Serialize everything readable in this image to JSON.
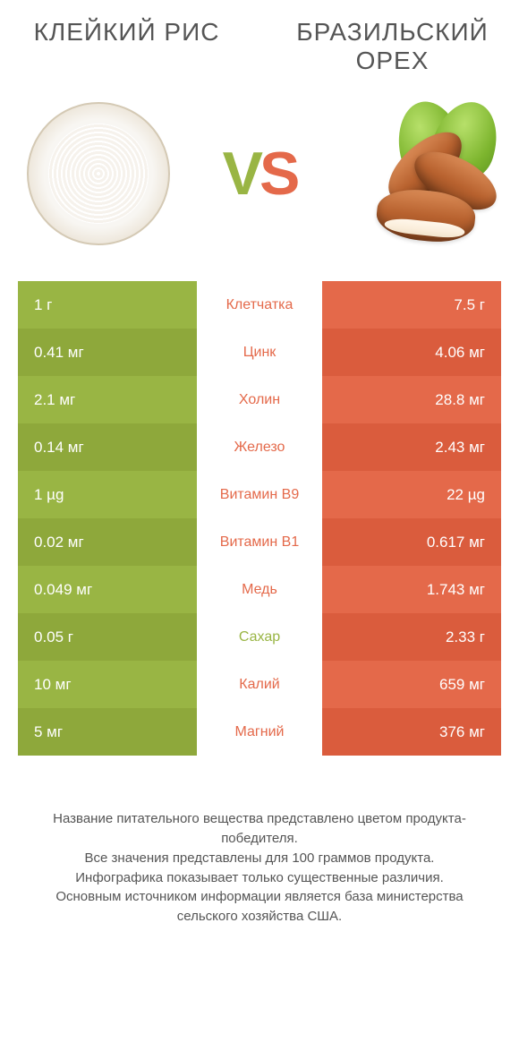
{
  "colors": {
    "left": "#99b544",
    "left_alt": "#8ea83b",
    "right": "#e4694a",
    "right_alt": "#da5c3d",
    "text": "#555555",
    "bg": "#ffffff"
  },
  "titles": {
    "left": "КЛЕЙКИЙ РИС",
    "right": "БРАЗИЛЬСКИЙ ОРЕХ"
  },
  "vs": {
    "v": "V",
    "s": "S"
  },
  "rows": [
    {
      "label": "Клетчатка",
      "left": "1 г",
      "right": "7.5 г",
      "winner": "right"
    },
    {
      "label": "Цинк",
      "left": "0.41 мг",
      "right": "4.06 мг",
      "winner": "right"
    },
    {
      "label": "Холин",
      "left": "2.1 мг",
      "right": "28.8 мг",
      "winner": "right"
    },
    {
      "label": "Железо",
      "left": "0.14 мг",
      "right": "2.43 мг",
      "winner": "right"
    },
    {
      "label": "Витамин B9",
      "left": "1 µg",
      "right": "22 µg",
      "winner": "right"
    },
    {
      "label": "Витамин B1",
      "left": "0.02 мг",
      "right": "0.617 мг",
      "winner": "right"
    },
    {
      "label": "Медь",
      "left": "0.049 мг",
      "right": "1.743 мг",
      "winner": "right"
    },
    {
      "label": "Сахар",
      "left": "0.05 г",
      "right": "2.33 г",
      "winner": "left"
    },
    {
      "label": "Калий",
      "left": "10 мг",
      "right": "659 мг",
      "winner": "right"
    },
    {
      "label": "Магний",
      "left": "5 мг",
      "right": "376 мг",
      "winner": "right"
    }
  ],
  "footer": {
    "line1": "Название питательного вещества представлено цветом продукта-победителя.",
    "line2": "Все значения представлены для 100 граммов продукта.",
    "line3": "Инфографика показывает только существенные различия.",
    "line4": "Основным источником информации является база министерства сельского хозяйства США."
  }
}
